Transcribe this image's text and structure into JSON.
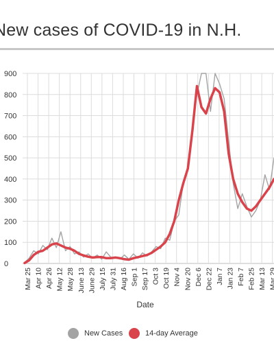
{
  "chart_data": {
    "type": "line",
    "title": "New cases of COVID-19 in N.H.",
    "xlabel": "Date",
    "ylabel": "",
    "ylim": [
      0,
      900
    ],
    "yticks": [
      0,
      100,
      200,
      300,
      400,
      500,
      600,
      700,
      800,
      900
    ],
    "x_tick_labels": [
      "Mar 25",
      "Apr 10",
      "Apr 26",
      "May 12",
      "May 28",
      "June 13",
      "June 29",
      "July 15",
      "July 31",
      "Aug 16",
      "Sep 1",
      "Sep 17",
      "Oct 3",
      "Oct 19",
      "Nov 4",
      "Nov 20",
      "Dec 6",
      "Dec 22",
      "Jan 7",
      "Jan 23",
      "Feb 7",
      "Feb 25",
      "Mar 13",
      "Mar 29"
    ],
    "grid": true,
    "legend_position": "bottom",
    "series": [
      {
        "name": "New Cases",
        "color": "#a3a3a3",
        "x": [
          "Mar 18",
          "Mar 25",
          "Apr 1",
          "Apr 8",
          "Apr 15",
          "Apr 22",
          "Apr 29",
          "May 6",
          "May 13",
          "May 20",
          "May 27",
          "Jun 3",
          "Jun 10",
          "Jun 17",
          "Jun 24",
          "Jul 1",
          "Jul 8",
          "Jul 15",
          "Jul 22",
          "Jul 29",
          "Aug 5",
          "Aug 12",
          "Aug 19",
          "Aug 26",
          "Sep 2",
          "Sep 9",
          "Sep 16",
          "Sep 23",
          "Sep 30",
          "Oct 7",
          "Oct 14",
          "Oct 21",
          "Oct 28",
          "Nov 4",
          "Nov 11",
          "Nov 18",
          "Nov 25",
          "Dec 2",
          "Dec 9",
          "Dec 16",
          "Dec 23",
          "Dec 30",
          "Jan 6",
          "Jan 13",
          "Jan 20",
          "Jan 27",
          "Feb 3",
          "Feb 10",
          "Feb 17",
          "Feb 24",
          "Mar 3",
          "Mar 10",
          "Mar 17",
          "Mar 24",
          "Mar 31",
          "Apr 4"
        ],
        "values": [
          5,
          25,
          60,
          45,
          85,
          65,
          120,
          75,
          150,
          60,
          80,
          45,
          55,
          30,
          45,
          25,
          40,
          20,
          55,
          30,
          30,
          20,
          40,
          20,
          45,
          25,
          50,
          35,
          55,
          80,
          70,
          120,
          110,
          200,
          230,
          380,
          450,
          650,
          800,
          900,
          900,
          720,
          900,
          850,
          780,
          580,
          380,
          260,
          330,
          270,
          220,
          250,
          300,
          420,
          350,
          500
        ]
      },
      {
        "name": "14-day Average",
        "color": "#d9434b",
        "x": [
          "Mar 18",
          "Mar 25",
          "Apr 1",
          "Apr 8",
          "Apr 15",
          "Apr 22",
          "Apr 29",
          "May 6",
          "May 13",
          "May 20",
          "May 27",
          "Jun 3",
          "Jun 10",
          "Jun 17",
          "Jun 24",
          "Jul 1",
          "Jul 8",
          "Jul 15",
          "Jul 22",
          "Jul 29",
          "Aug 5",
          "Aug 12",
          "Aug 19",
          "Aug 26",
          "Sep 2",
          "Sep 9",
          "Sep 16",
          "Sep 23",
          "Sep 30",
          "Oct 7",
          "Oct 14",
          "Oct 21",
          "Oct 28",
          "Nov 4",
          "Nov 11",
          "Nov 18",
          "Nov 25",
          "Dec 2",
          "Dec 9",
          "Dec 16",
          "Dec 23",
          "Dec 30",
          "Jan 6",
          "Jan 13",
          "Jan 20",
          "Jan 27",
          "Feb 3",
          "Feb 10",
          "Feb 17",
          "Feb 24",
          "Mar 3",
          "Mar 10",
          "Mar 17",
          "Mar 24",
          "Mar 31",
          "Apr 4"
        ],
        "values": [
          2,
          15,
          40,
          55,
          60,
          75,
          90,
          95,
          85,
          75,
          70,
          60,
          45,
          38,
          32,
          28,
          30,
          30,
          25,
          25,
          28,
          25,
          20,
          18,
          25,
          30,
          35,
          40,
          50,
          65,
          80,
          100,
          140,
          200,
          300,
          380,
          450,
          630,
          840,
          740,
          710,
          780,
          830,
          810,
          720,
          520,
          400,
          330,
          290,
          260,
          250,
          270,
          300,
          330,
          360,
          400
        ]
      }
    ]
  }
}
